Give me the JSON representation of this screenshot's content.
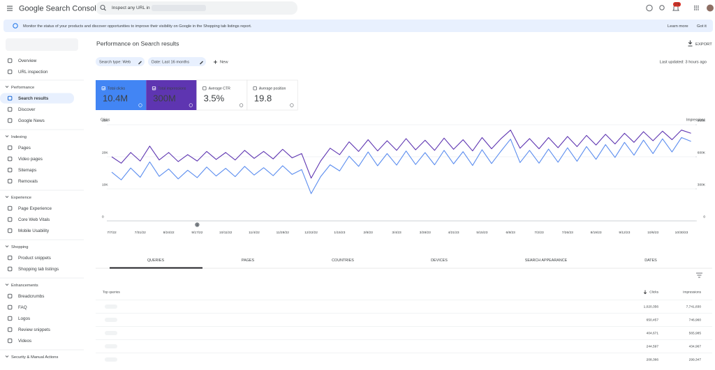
{
  "header": {
    "product": "Google Search Console",
    "search_placeholder": "Inspect any URL in",
    "notification_count": "176"
  },
  "banner": {
    "text": "Monitor the status of your products and discover opportunities to improve their visibility on Google in the Shopping tab listings report.",
    "learn_more": "Learn more",
    "got_it": "Got it"
  },
  "sidebar": {
    "top": [
      "Overview",
      "URL inspection"
    ],
    "sections": [
      {
        "title": "Performance",
        "items": [
          "Search results",
          "Discover",
          "Google News"
        ]
      },
      {
        "title": "Indexing",
        "items": [
          "Pages",
          "Video pages",
          "Sitemaps",
          "Removals"
        ]
      },
      {
        "title": "Experience",
        "items": [
          "Page Experience",
          "Core Web Vitals",
          "Mobile Usability"
        ]
      },
      {
        "title": "Shopping",
        "items": [
          "Product snippets",
          "Shopping tab listings"
        ]
      },
      {
        "title": "Enhancements",
        "items": [
          "Breadcrumbs",
          "FAQ",
          "Logos",
          "Review snippets",
          "Videos"
        ]
      },
      {
        "title": "Security & Manual Actions"
      }
    ]
  },
  "page": {
    "title": "Performance on Search results",
    "export": "EXPORT",
    "filters": [
      "Search type: Web",
      "Date: Last 16 months"
    ],
    "new": "New",
    "last_updated": "Last updated: 3 hours ago",
    "metrics": [
      {
        "label": "Total clicks",
        "value": "10.4M"
      },
      {
        "label": "Total impressions",
        "value": "300M"
      },
      {
        "label": "Average CTR",
        "value": "3.5%"
      },
      {
        "label": "Average position",
        "value": "19.8"
      }
    ]
  },
  "chart_data": {
    "type": "line",
    "y_label": "Clicks",
    "y2_label": "Impressions",
    "annotation": "1",
    "categories": [
      "7/7/22",
      null,
      null,
      "7/31/22",
      null,
      null,
      "8/24/22",
      null,
      null,
      "9/17/22",
      null,
      null,
      "10/11/22",
      null,
      null,
      "11/4/22",
      null,
      null,
      "11/28/22",
      null,
      null,
      "12/22/22",
      null,
      null,
      "1/15/23",
      null,
      null,
      "2/8/23",
      null,
      null,
      "3/4/23",
      null,
      null,
      "3/28/23",
      null,
      null,
      "4/21/23",
      null,
      null,
      "5/15/23",
      null,
      null,
      "6/8/23",
      null,
      null,
      "7/2/23",
      null,
      null,
      "7/26/23",
      null,
      null,
      "8/19/23",
      null,
      null,
      "9/12/23",
      null,
      null,
      "10/6/23",
      null,
      null,
      "10/30/23",
      null
    ],
    "ylim": [
      0,
      30000
    ],
    "yticks": [
      0,
      {
        "value": 10000,
        "label": "10K"
      },
      {
        "value": 20000,
        "label": "20K"
      },
      {
        "value": 30000,
        "label": "30K"
      }
    ],
    "y2lim": [
      0,
      900000
    ],
    "y2ticks": [
      0,
      {
        "value": 300000,
        "label": "300K"
      },
      {
        "value": 600000,
        "label": "600K"
      },
      {
        "value": 900000,
        "label": "900K"
      }
    ],
    "grid": true,
    "series": [
      {
        "name": "Total clicks",
        "color": "#5b8def",
        "values": [
          15200,
          12800,
          16500,
          13600,
          18400,
          13900,
          16200,
          13100,
          15800,
          13500,
          16800,
          14000,
          16400,
          13800,
          17000,
          14300,
          16600,
          14100,
          17200,
          14500,
          16000,
          8500,
          13800,
          17500,
          15600,
          20200,
          17000,
          21500,
          17200,
          21000,
          17400,
          21800,
          17600,
          21300,
          17500,
          22000,
          17800,
          21600,
          17300,
          22200,
          17900,
          21800,
          25500,
          18200,
          22000,
          18000,
          22400,
          18300,
          22800,
          18600,
          23200,
          19200,
          23800,
          19800,
          24500,
          20500,
          25200,
          21000,
          25600,
          21500,
          26000,
          24800
        ]
      },
      {
        "name": "Total impressions",
        "color": "#5e35b1",
        "axis": "y2",
        "values": [
          600000,
          540000,
          640000,
          560000,
          700000,
          570000,
          640000,
          555000,
          620000,
          560000,
          650000,
          575000,
          640000,
          570000,
          660000,
          585000,
          650000,
          580000,
          670000,
          590000,
          630000,
          400000,
          560000,
          680000,
          620000,
          740000,
          650000,
          760000,
          655000,
          750000,
          660000,
          770000,
          665000,
          755000,
          660000,
          775000,
          670000,
          760000,
          655000,
          780000,
          675000,
          770000,
          850000,
          680000,
          770000,
          675000,
          780000,
          685000,
          790000,
          695000,
          800000,
          710000,
          810000,
          720000,
          820000,
          735000,
          835000,
          750000,
          840000,
          760000,
          850000,
          820000
        ]
      }
    ]
  },
  "table": {
    "tabs": [
      "QUERIES",
      "PAGES",
      "COUNTRIES",
      "DEVICES",
      "SEARCH APPEARANCE",
      "DATES"
    ],
    "columns": {
      "query": "Top queries",
      "clicks": "Clicks",
      "impressions": "Impressions"
    },
    "rows": [
      [
        "1,020,356",
        "7,741,830"
      ],
      [
        "650,457",
        "746,960"
      ],
      [
        "404,671",
        "565,985"
      ],
      [
        "244,597",
        "434,967"
      ],
      [
        "208,366",
        "299,347"
      ]
    ]
  }
}
